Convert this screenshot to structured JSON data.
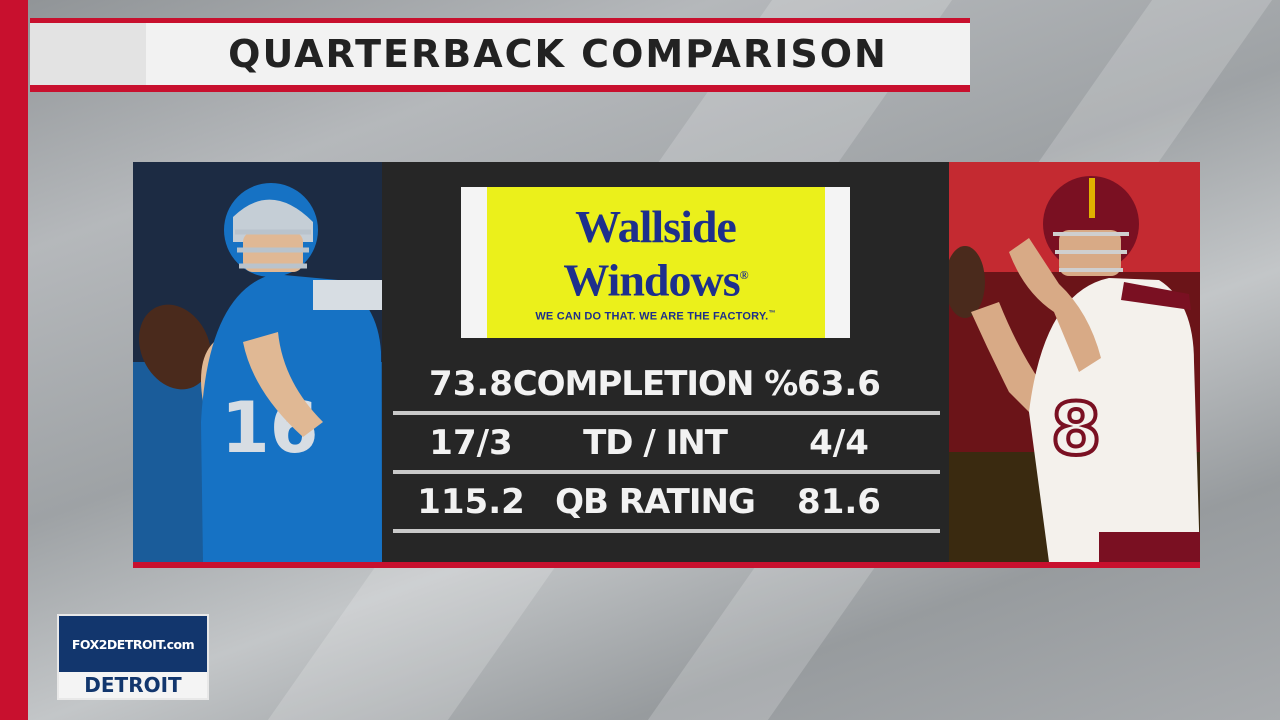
{
  "title": "QUARTERBACK COMPARISON",
  "sponsor": {
    "name_line1": "Wallside",
    "name_line2": "Windows",
    "registered_mark": "®",
    "tagline": "WE CAN DO THAT. WE ARE THE FACTORY.",
    "tagline_mark": "™"
  },
  "stats": [
    {
      "left": "73.8",
      "label": "COMPLETION %",
      "right": "63.6"
    },
    {
      "left": "17/3",
      "label": "TD / INT",
      "right": "4/4"
    },
    {
      "left": "115.2",
      "label": "QB RATING",
      "right": "81.6"
    }
  ],
  "players": {
    "left": {
      "jersey_number": "16",
      "primary_color": "#1672c4",
      "secondary_color": "#c5ced6"
    },
    "right": {
      "jersey_number": "8",
      "primary_color": "#f4f1ec",
      "secondary_color": "#7a1022"
    }
  },
  "network": {
    "site": "FOX2DETROIT.com",
    "city": "DETROIT"
  },
  "colors": {
    "accent_red": "#c8102e",
    "panel_dark": "#262626",
    "sponsor_yellow": "#ebf01b",
    "sponsor_navy": "#1d2f8c",
    "network_navy": "#12366d"
  }
}
